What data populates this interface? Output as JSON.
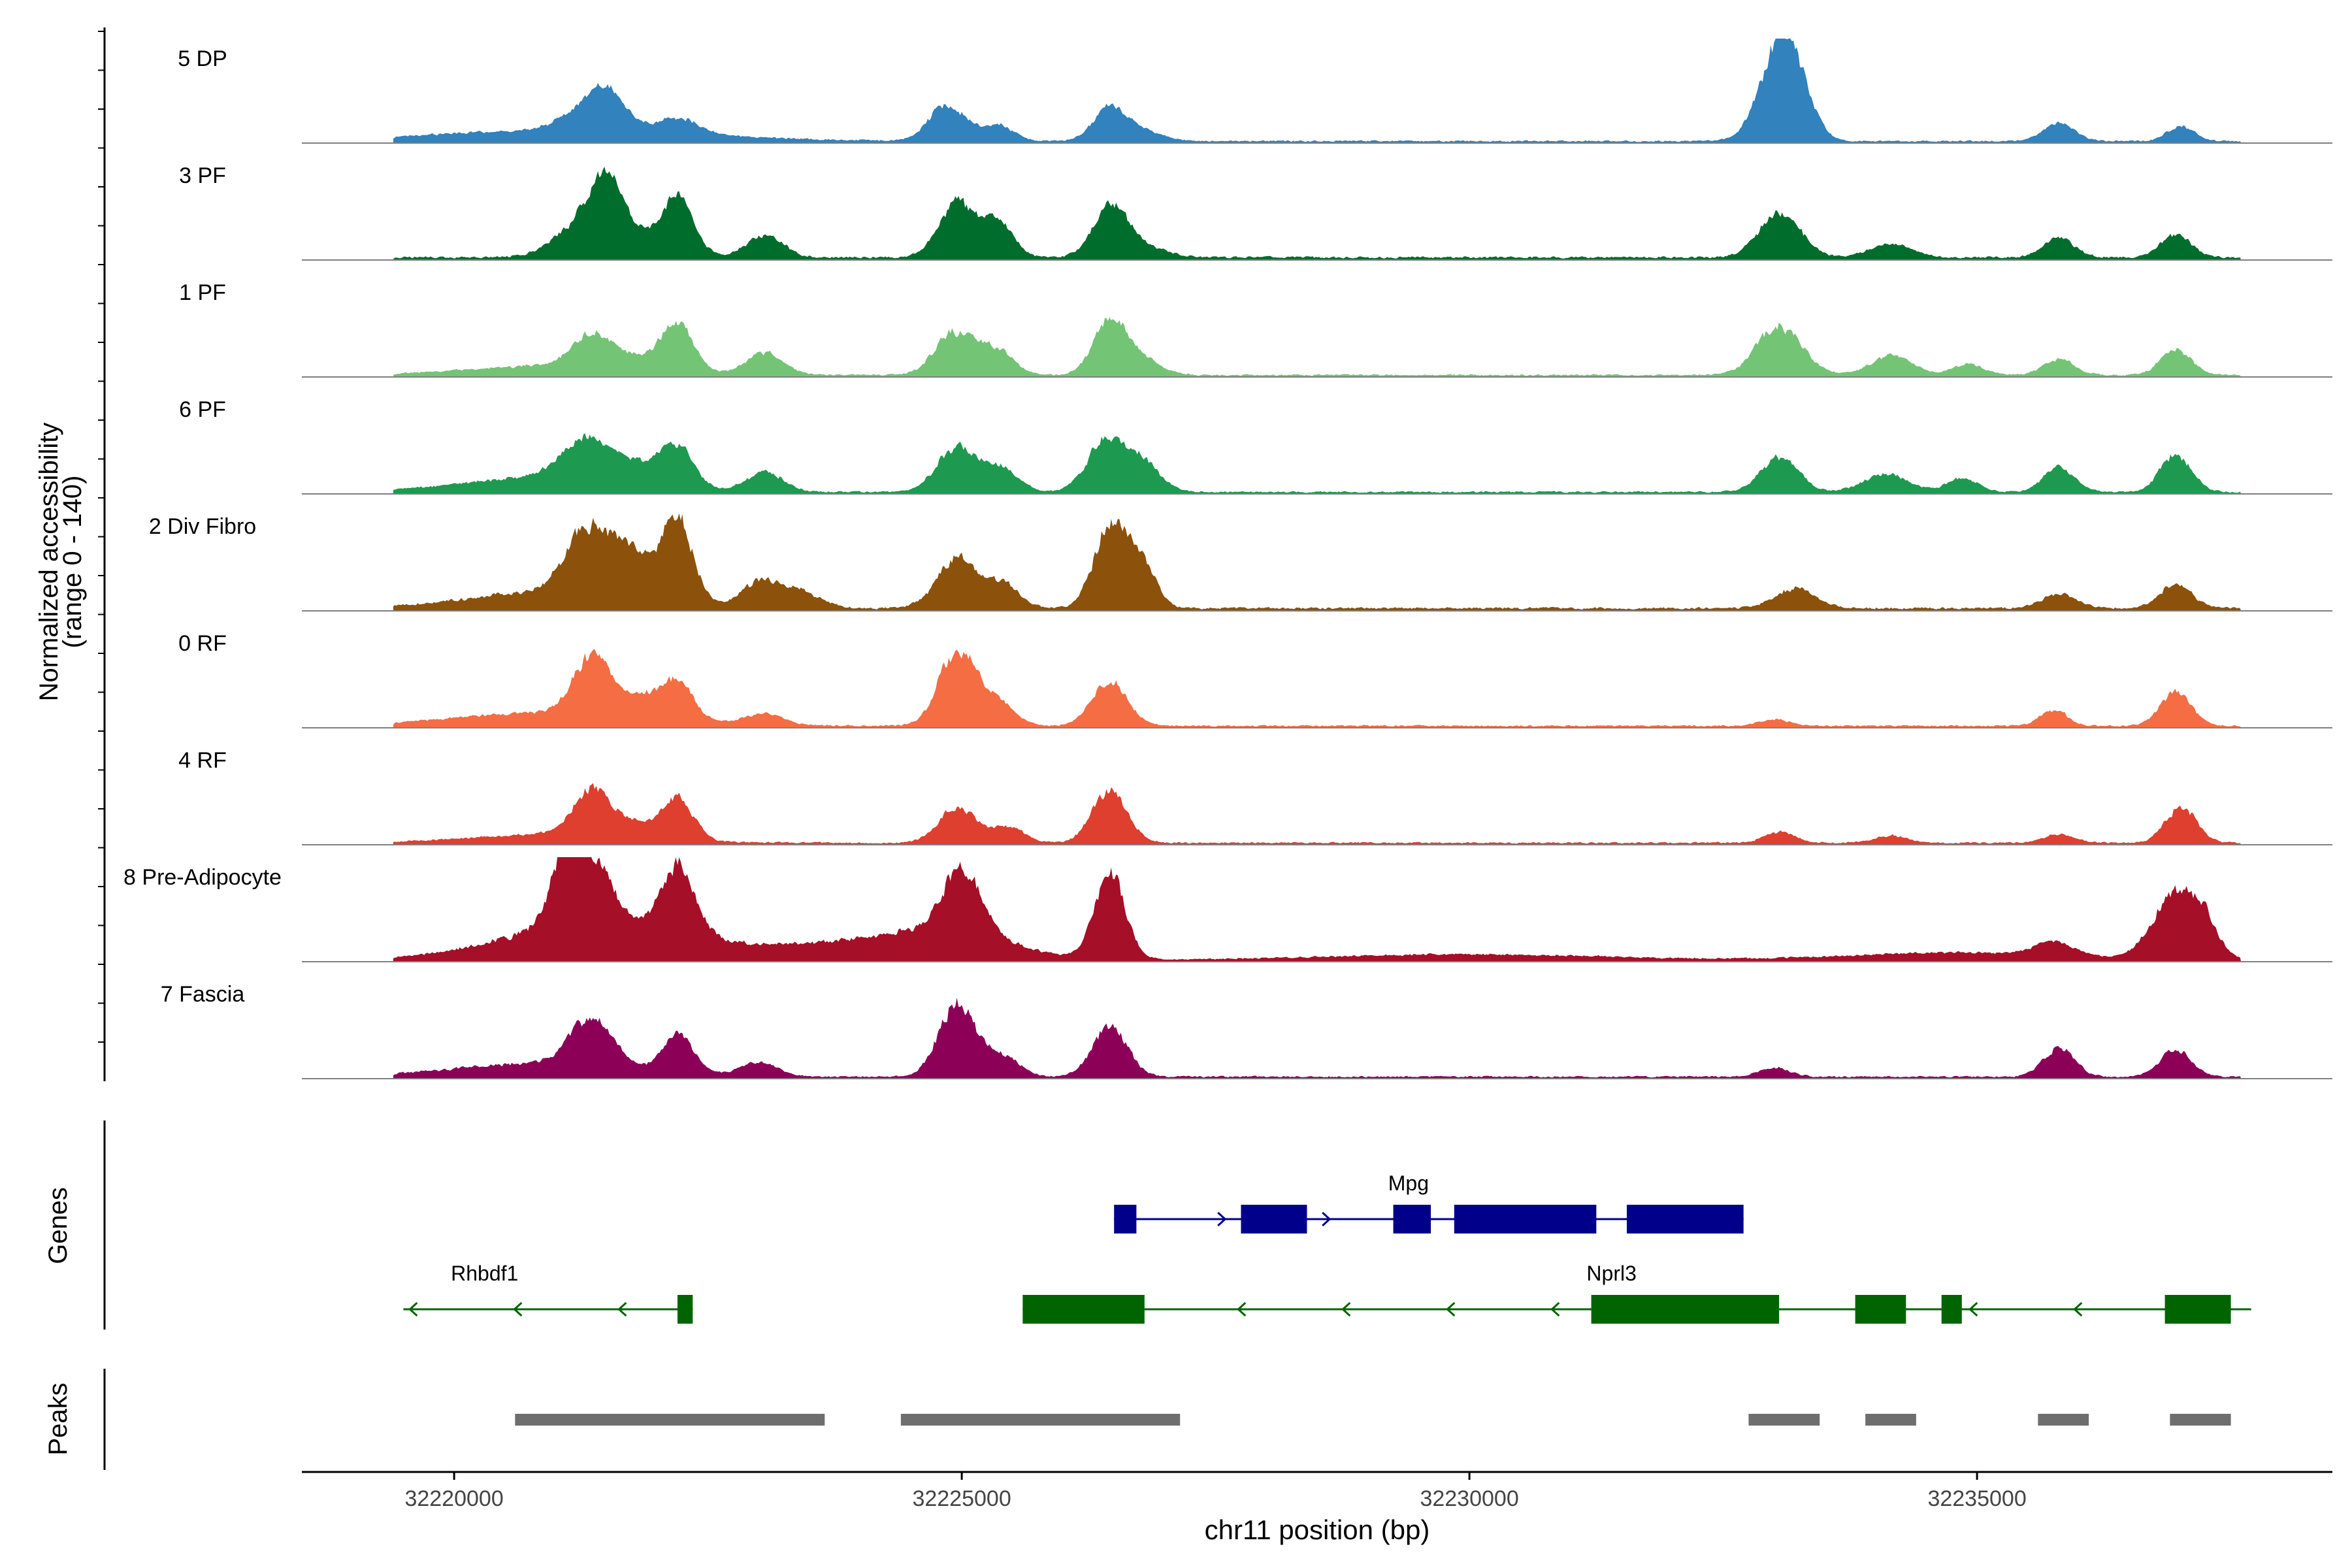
{
  "chart_data": {
    "type": "area",
    "title": "",
    "ylabel_line1": "Normalized accessibility",
    "ylabel_line2": "(range 0 - 140)",
    "xlabel": "chr11 position (bp)",
    "xlim": [
      32218500,
      32238500
    ],
    "xticks": [
      32220000,
      32225000,
      32230000,
      32235000
    ],
    "xtick_labels": [
      "32220000",
      "32225000",
      "32230000",
      "32235000"
    ],
    "region": [
      32219400,
      32237600
    ],
    "ylim": [
      0,
      140
    ],
    "tracks": [
      {
        "name": "5 DP",
        "color": "#3182BD",
        "noise": 0.03,
        "peaks": [
          [
            32221100,
            1300,
            0.12
          ],
          [
            32221300,
            250,
            0.22
          ],
          [
            32221500,
            180,
            0.33
          ],
          [
            32222200,
            200,
            0.18
          ],
          [
            32224850,
            180,
            0.4
          ],
          [
            32225350,
            150,
            0.18
          ],
          [
            32226450,
            160,
            0.35
          ],
          [
            32226750,
            200,
            0.12
          ],
          [
            32233050,
            200,
            0.95
          ],
          [
            32233200,
            160,
            0.35
          ],
          [
            32235800,
            150,
            0.2
          ],
          [
            32237000,
            130,
            0.17
          ]
        ]
      },
      {
        "name": "3 PF",
        "color": "#006D2C",
        "noise": 0.04,
        "peaks": [
          [
            32221300,
            280,
            0.42
          ],
          [
            32221500,
            150,
            0.55
          ],
          [
            32221900,
            300,
            0.2
          ],
          [
            32222200,
            150,
            0.55
          ],
          [
            32223050,
            180,
            0.25
          ],
          [
            32224950,
            180,
            0.6
          ],
          [
            32225350,
            150,
            0.38
          ],
          [
            32226450,
            160,
            0.52
          ],
          [
            32226700,
            250,
            0.15
          ],
          [
            32233050,
            200,
            0.5
          ],
          [
            32234150,
            200,
            0.15
          ],
          [
            32235800,
            150,
            0.22
          ],
          [
            32236950,
            150,
            0.25
          ]
        ]
      },
      {
        "name": "1 PF",
        "color": "#74C476",
        "noise": 0.03,
        "peaks": [
          [
            32220900,
            800,
            0.1
          ],
          [
            32221350,
            200,
            0.35
          ],
          [
            32221900,
            300,
            0.15
          ],
          [
            32222200,
            150,
            0.48
          ],
          [
            32223050,
            180,
            0.25
          ],
          [
            32224900,
            180,
            0.45
          ],
          [
            32225300,
            180,
            0.3
          ],
          [
            32226450,
            160,
            0.6
          ],
          [
            32226750,
            180,
            0.18
          ],
          [
            32233050,
            220,
            0.55
          ],
          [
            32234150,
            200,
            0.22
          ],
          [
            32234900,
            150,
            0.12
          ],
          [
            32235800,
            150,
            0.18
          ],
          [
            32236950,
            150,
            0.28
          ]
        ]
      },
      {
        "name": "6 PF",
        "color": "#1D9A4F",
        "noise": 0.03,
        "peaks": [
          [
            32220800,
            800,
            0.15
          ],
          [
            32221300,
            250,
            0.45
          ],
          [
            32221900,
            300,
            0.22
          ],
          [
            32222200,
            150,
            0.38
          ],
          [
            32223050,
            180,
            0.22
          ],
          [
            32224950,
            200,
            0.5
          ],
          [
            32225400,
            160,
            0.25
          ],
          [
            32226400,
            180,
            0.55
          ],
          [
            32226750,
            180,
            0.35
          ],
          [
            32233050,
            180,
            0.4
          ],
          [
            32234100,
            220,
            0.2
          ],
          [
            32234850,
            150,
            0.15
          ],
          [
            32235800,
            150,
            0.28
          ],
          [
            32236950,
            150,
            0.42
          ]
        ]
      },
      {
        "name": "2 Div Fibro",
        "color": "#8C510A",
        "noise": 0.04,
        "peaks": [
          [
            32221000,
            800,
            0.2
          ],
          [
            32221300,
            200,
            0.72
          ],
          [
            32221650,
            150,
            0.35
          ],
          [
            32221900,
            200,
            0.3
          ],
          [
            32222200,
            150,
            0.85
          ],
          [
            32223000,
            180,
            0.28
          ],
          [
            32223400,
            200,
            0.18
          ],
          [
            32224950,
            200,
            0.55
          ],
          [
            32225400,
            160,
            0.25
          ],
          [
            32226450,
            160,
            0.88
          ],
          [
            32226750,
            150,
            0.5
          ],
          [
            32233200,
            200,
            0.22
          ],
          [
            32235800,
            180,
            0.15
          ],
          [
            32236950,
            150,
            0.28
          ]
        ]
      },
      {
        "name": "0 RF",
        "color": "#F46D43",
        "noise": 0.03,
        "peaks": [
          [
            32221000,
            1000,
            0.15
          ],
          [
            32221350,
            180,
            0.65
          ],
          [
            32221850,
            200,
            0.22
          ],
          [
            32222200,
            150,
            0.4
          ],
          [
            32223050,
            180,
            0.12
          ],
          [
            32224950,
            180,
            0.85
          ],
          [
            32225350,
            160,
            0.25
          ],
          [
            32226450,
            170,
            0.5
          ],
          [
            32233000,
            150,
            0.07
          ],
          [
            32235750,
            130,
            0.18
          ],
          [
            32236950,
            150,
            0.38
          ]
        ]
      },
      {
        "name": "4 RF",
        "color": "#DE3F2E",
        "noise": 0.03,
        "peaks": [
          [
            32221000,
            800,
            0.1
          ],
          [
            32221350,
            180,
            0.52
          ],
          [
            32221800,
            200,
            0.15
          ],
          [
            32222200,
            150,
            0.45
          ],
          [
            32224950,
            180,
            0.4
          ],
          [
            32225450,
            160,
            0.18
          ],
          [
            32226450,
            170,
            0.58
          ],
          [
            32233050,
            150,
            0.12
          ],
          [
            32234150,
            150,
            0.08
          ],
          [
            32235800,
            150,
            0.1
          ],
          [
            32237000,
            150,
            0.4
          ]
        ]
      },
      {
        "name": "8 Pre-Adipocyte",
        "color": "#A50F27",
        "noise": 0.03,
        "peaks": [
          [
            32221500,
            900,
            0.45
          ],
          [
            32221100,
            150,
            0.8
          ],
          [
            32221400,
            150,
            0.6
          ],
          [
            32222200,
            160,
            0.75
          ],
          [
            32223600,
            500,
            0.12
          ],
          [
            32224800,
            600,
            0.35
          ],
          [
            32225000,
            180,
            0.7
          ],
          [
            32226450,
            150,
            0.95
          ],
          [
            32230000,
            1300,
            0.06
          ],
          [
            32234800,
            1000,
            0.08
          ],
          [
            32235750,
            200,
            0.15
          ],
          [
            32236900,
            200,
            0.65
          ],
          [
            32237200,
            150,
            0.45
          ]
        ]
      },
      {
        "name": "7 Fascia",
        "color": "#8C0057",
        "noise": 0.03,
        "peaks": [
          [
            32220900,
            900,
            0.15
          ],
          [
            32221350,
            200,
            0.55
          ],
          [
            32222200,
            150,
            0.42
          ],
          [
            32223000,
            180,
            0.15
          ],
          [
            32224950,
            180,
            0.82
          ],
          [
            32225400,
            160,
            0.22
          ],
          [
            32226450,
            170,
            0.55
          ],
          [
            32233000,
            150,
            0.1
          ],
          [
            32235800,
            150,
            0.32
          ],
          [
            32236950,
            150,
            0.3
          ]
        ]
      }
    ],
    "genes_label": "Genes",
    "genes": [
      {
        "name": "Mpg",
        "strand": "+",
        "color": "#00008B",
        "start": 32226500,
        "end": 32232700,
        "exons": [
          [
            32226500,
            32226720
          ],
          [
            32227750,
            32228400
          ],
          [
            32229250,
            32229620
          ],
          [
            32229850,
            32231250
          ],
          [
            32231550,
            32232700
          ]
        ]
      },
      {
        "name": "Rhbdf1",
        "strand": "-",
        "color": "#006400",
        "start": 32219500,
        "end": 32222350,
        "exons": [
          [
            32222200,
            32222350
          ]
        ]
      },
      {
        "name": "Nprl3",
        "strand": "-",
        "color": "#006400",
        "start": 32225600,
        "end": 32237700,
        "exons": [
          [
            32225600,
            32226800
          ],
          [
            32231200,
            32233050
          ],
          [
            32233800,
            32234300
          ],
          [
            32234650,
            32234850
          ],
          [
            32236850,
            32237500
          ]
        ]
      }
    ],
    "peaks_label": "Peaks",
    "peak_color": "#6E6E6E",
    "peaks": [
      [
        32220600,
        32223650
      ],
      [
        32224400,
        32227150
      ],
      [
        32232750,
        32233450
      ],
      [
        32233900,
        32234400
      ],
      [
        32235600,
        32236100
      ],
      [
        32236900,
        32237500
      ]
    ]
  }
}
